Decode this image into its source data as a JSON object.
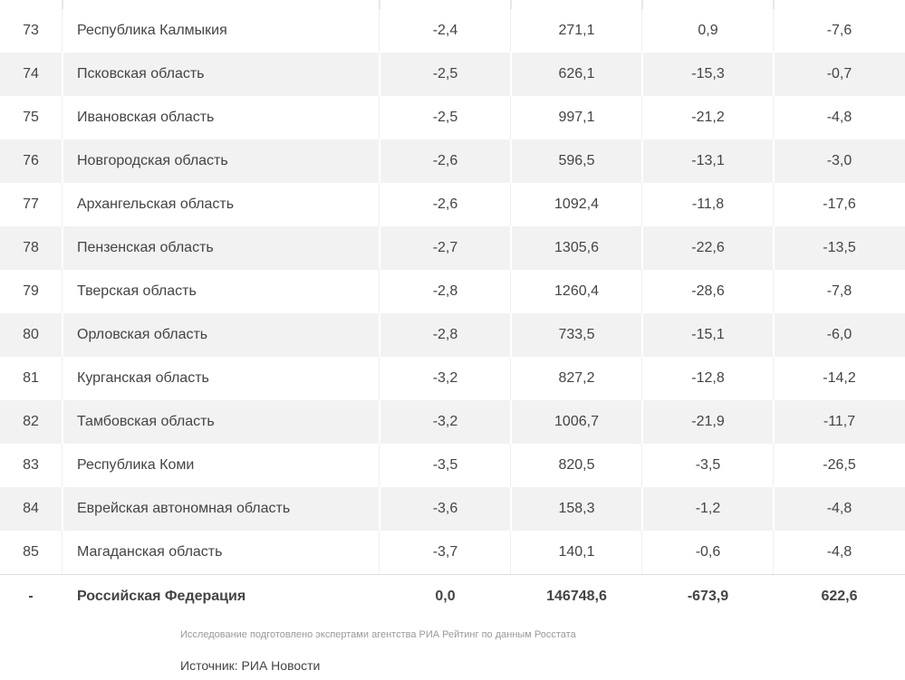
{
  "table": {
    "rows": [
      {
        "rank": "73",
        "region": "Республика Калмыкия",
        "v1": "-2,4",
        "v2": "271,1",
        "v3": "0,9",
        "v4": "-7,6"
      },
      {
        "rank": "74",
        "region": "Псковская область",
        "v1": "-2,5",
        "v2": "626,1",
        "v3": "-15,3",
        "v4": "-0,7"
      },
      {
        "rank": "75",
        "region": "Ивановская область",
        "v1": "-2,5",
        "v2": "997,1",
        "v3": "-21,2",
        "v4": "-4,8"
      },
      {
        "rank": "76",
        "region": "Новгородская область",
        "v1": "-2,6",
        "v2": "596,5",
        "v3": "-13,1",
        "v4": "-3,0"
      },
      {
        "rank": "77",
        "region": "Архангельская область",
        "v1": "-2,6",
        "v2": "1092,4",
        "v3": "-11,8",
        "v4": "-17,6"
      },
      {
        "rank": "78",
        "region": "Пензенская область",
        "v1": "-2,7",
        "v2": "1305,6",
        "v3": "-22,6",
        "v4": "-13,5"
      },
      {
        "rank": "79",
        "region": "Тверская область",
        "v1": "-2,8",
        "v2": "1260,4",
        "v3": "-28,6",
        "v4": "-7,8"
      },
      {
        "rank": "80",
        "region": "Орловская область",
        "v1": "-2,8",
        "v2": "733,5",
        "v3": "-15,1",
        "v4": "-6,0"
      },
      {
        "rank": "81",
        "region": "Курганская область",
        "v1": "-3,2",
        "v2": "827,2",
        "v3": "-12,8",
        "v4": "-14,2"
      },
      {
        "rank": "82",
        "region": "Тамбовская область",
        "v1": "-3,2",
        "v2": "1006,7",
        "v3": "-21,9",
        "v4": "-11,7"
      },
      {
        "rank": "83",
        "region": "Республика Коми",
        "v1": "-3,5",
        "v2": "820,5",
        "v3": "-3,5",
        "v4": "-26,5"
      },
      {
        "rank": "84",
        "region": "Еврейская автономная область",
        "v1": "-3,6",
        "v2": "158,3",
        "v3": "-1,2",
        "v4": "-4,8"
      },
      {
        "rank": "85",
        "region": "Магаданская область",
        "v1": "-3,7",
        "v2": "140,1",
        "v3": "-0,6",
        "v4": "-4,8"
      }
    ],
    "total": {
      "rank": "-",
      "region": "Российская Федерация",
      "v1": "0,0",
      "v2": "146748,6",
      "v3": "-673,9",
      "v4": "622,6"
    }
  },
  "footer": {
    "note": "Исследование подготовлено экспертами агентства РИА Рейтинг по данным Росстата",
    "source": "Источник: РИА Новости"
  },
  "colors": {
    "row_shade": "#f2f2f2",
    "text": "#444444",
    "note_text": "#999999"
  }
}
